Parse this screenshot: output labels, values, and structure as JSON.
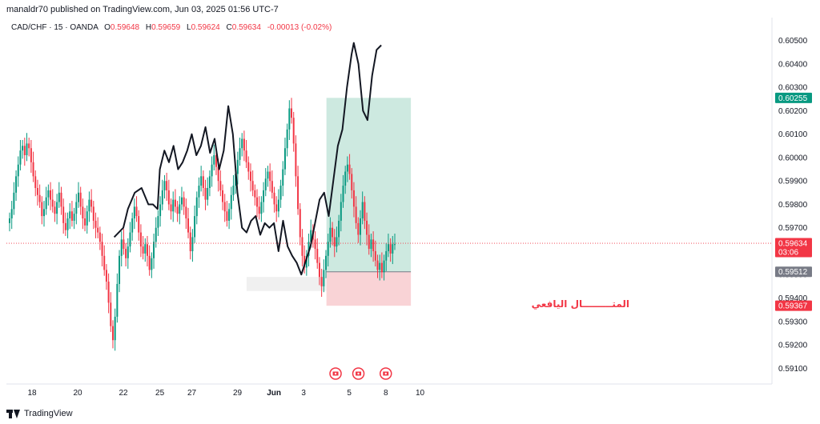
{
  "header": {
    "publisher": "manaldr70 published on TradingView.com, Jun 03, 2025 01:56 UTC-7"
  },
  "legend": {
    "symbol": "CAD/CHF · 15 · OANDA",
    "open_label": "O",
    "open": "0.59648",
    "high_label": "H",
    "high": "0.59659",
    "low_label": "L",
    "low": "0.59624",
    "close_label": "C",
    "close": "0.59634",
    "change": "-0.00013 (-0.02%)"
  },
  "colors": {
    "up": "#089981",
    "down": "#f23645",
    "profit_zone": "#cde9e0",
    "loss_zone": "#f9d3d6",
    "drawing_line": "#131722",
    "grey_zone": "#f0f0f0",
    "event_icon": "#f23645"
  },
  "annotation": "المتـــــــــال اليافعي",
  "footer": {
    "brand": "TradingView"
  },
  "chart_data": {
    "type": "line",
    "symbol": "CAD/CHF",
    "timeframe": "15",
    "y_axis": {
      "ticks": [
        0.605,
        0.604,
        0.603,
        0.602,
        0.601,
        0.6,
        0.599,
        0.598,
        0.597,
        0.595,
        0.594,
        0.593,
        0.592,
        0.591
      ],
      "ylim": [
        0.5906,
        0.6055
      ],
      "tick_labels": [
        "0.60500",
        "0.60400",
        "0.60300",
        "0.60200",
        "0.60100",
        "0.60000",
        "0.59900",
        "0.59800",
        "0.59700",
        "0.59500",
        "0.59400",
        "0.59300",
        "0.59200",
        "0.59100"
      ]
    },
    "x_axis": {
      "ticks": [
        {
          "label": "18",
          "day": 0
        },
        {
          "label": "20",
          "day": 2
        },
        {
          "label": "22",
          "day": 4
        },
        {
          "label": "25",
          "day": 5.6
        },
        {
          "label": "27",
          "day": 7.0
        },
        {
          "label": "29",
          "day": 9.0
        },
        {
          "label": "Jun",
          "day": 10.6
        },
        {
          "label": "3",
          "day": 11.9
        },
        {
          "label": "5",
          "day": 13.9
        },
        {
          "label": "8",
          "day": 15.5
        },
        {
          "label": "10",
          "day": 17.0
        }
      ]
    },
    "axis_markers": [
      {
        "label": "0.60255",
        "value": 0.60255,
        "color": "#089981"
      },
      {
        "label": "0.59634",
        "value": 0.59634,
        "color": "#f23645",
        "sub": "03:06"
      },
      {
        "label": "0.59512",
        "value": 0.59512,
        "color": "#787b86"
      },
      {
        "label": "0.59367",
        "value": 0.59367,
        "color": "#f23645"
      }
    ],
    "position": {
      "entry": 0.59512,
      "target": 0.60255,
      "stop": 0.59367,
      "start_day": 12.9,
      "end_day": 16.6
    },
    "grey_box": {
      "top": 0.5949,
      "bottom": 0.5943,
      "start_day": 9.4,
      "end_day": 12.9
    },
    "event_days": [
      13.3,
      14.3,
      15.5
    ],
    "candles_close": [
      0.5974,
      0.5978,
      0.5985,
      0.5992,
      0.5997,
      0.6003,
      0.6005,
      0.6001,
      0.6006,
      0.6004,
      0.5998,
      0.5992,
      0.5987,
      0.5984,
      0.5981,
      0.5975,
      0.5978,
      0.5983,
      0.5986,
      0.5982,
      0.5979,
      0.5976,
      0.5981,
      0.5985,
      0.5979,
      0.5972,
      0.5969,
      0.5974,
      0.5977,
      0.5973,
      0.5976,
      0.5981,
      0.5985,
      0.5979,
      0.5974,
      0.5971,
      0.5977,
      0.5982,
      0.5979,
      0.5973,
      0.597,
      0.5968,
      0.5964,
      0.5958,
      0.5952,
      0.5947,
      0.5938,
      0.5928,
      0.5922,
      0.5932,
      0.5946,
      0.5958,
      0.5965,
      0.5961,
      0.5957,
      0.5962,
      0.5968,
      0.5974,
      0.5979,
      0.5975,
      0.5968,
      0.5962,
      0.5959,
      0.5963,
      0.5958,
      0.5952,
      0.5957,
      0.5964,
      0.597,
      0.5975,
      0.598,
      0.5986,
      0.599,
      0.5986,
      0.598,
      0.5977,
      0.5982,
      0.5979,
      0.5976,
      0.598,
      0.5983,
      0.5979,
      0.5974,
      0.5968,
      0.596,
      0.5966,
      0.5975,
      0.5983,
      0.5988,
      0.5992,
      0.5987,
      0.5982,
      0.5987,
      0.5992,
      0.5997,
      0.6001,
      0.5996,
      0.599,
      0.5986,
      0.5981,
      0.5977,
      0.5973,
      0.5978,
      0.5984,
      0.5988,
      0.5993,
      0.5999,
      0.6004,
      0.6008,
      0.6003,
      0.5998,
      0.5994,
      0.599,
      0.5986,
      0.5983,
      0.5979,
      0.5976,
      0.5981,
      0.5986,
      0.5991,
      0.5994,
      0.599,
      0.5985,
      0.598,
      0.5977,
      0.5982,
      0.5988,
      0.5995,
      0.6004,
      0.6012,
      0.6021,
      0.6017,
      0.6006,
      0.5992,
      0.5978,
      0.5966,
      0.5958,
      0.5953,
      0.5958,
      0.5964,
      0.5969,
      0.5965,
      0.5961,
      0.5955,
      0.5949,
      0.5945,
      0.5952,
      0.5958,
      0.5964,
      0.597,
      0.5966,
      0.5962,
      0.5966,
      0.5973,
      0.5981,
      0.5988,
      0.5994,
      0.5997,
      0.5993,
      0.5986,
      0.5979,
      0.5972,
      0.5967,
      0.5974,
      0.5981,
      0.5973,
      0.5967,
      0.5961,
      0.5965,
      0.596,
      0.5956,
      0.5952,
      0.5955,
      0.5951,
      0.5956,
      0.596,
      0.5963,
      0.5959,
      0.5963,
      0.5963
    ],
    "drawn_path": [
      {
        "day": 3.6,
        "price": 0.5966
      },
      {
        "day": 4.0,
        "price": 0.597
      },
      {
        "day": 4.2,
        "price": 0.5978
      },
      {
        "day": 4.5,
        "price": 0.5985
      },
      {
        "day": 4.8,
        "price": 0.5987
      },
      {
        "day": 5.1,
        "price": 0.598
      },
      {
        "day": 5.3,
        "price": 0.598
      },
      {
        "day": 5.5,
        "price": 0.5978
      },
      {
        "day": 5.6,
        "price": 0.5995
      },
      {
        "day": 5.8,
        "price": 0.6003
      },
      {
        "day": 6.0,
        "price": 0.5998
      },
      {
        "day": 6.2,
        "price": 0.6005
      },
      {
        "day": 6.4,
        "price": 0.5995
      },
      {
        "day": 6.6,
        "price": 0.5998
      },
      {
        "day": 6.8,
        "price": 0.6003
      },
      {
        "day": 7.0,
        "price": 0.601
      },
      {
        "day": 7.2,
        "price": 0.6001
      },
      {
        "day": 7.4,
        "price": 0.6005
      },
      {
        "day": 7.6,
        "price": 0.6013
      },
      {
        "day": 7.8,
        "price": 0.6002
      },
      {
        "day": 8.0,
        "price": 0.6008
      },
      {
        "day": 8.2,
        "price": 0.5995
      },
      {
        "day": 8.4,
        "price": 0.6003
      },
      {
        "day": 8.6,
        "price": 0.6022
      },
      {
        "day": 8.8,
        "price": 0.601
      },
      {
        "day": 9.0,
        "price": 0.5985
      },
      {
        "day": 9.2,
        "price": 0.597
      },
      {
        "day": 9.4,
        "price": 0.5968
      },
      {
        "day": 9.6,
        "price": 0.5973
      },
      {
        "day": 9.8,
        "price": 0.5975
      },
      {
        "day": 10.0,
        "price": 0.5967
      },
      {
        "day": 10.2,
        "price": 0.5972
      },
      {
        "day": 10.4,
        "price": 0.597
      },
      {
        "day": 10.6,
        "price": 0.5972
      },
      {
        "day": 10.8,
        "price": 0.596
      },
      {
        "day": 11.0,
        "price": 0.5973
      },
      {
        "day": 11.2,
        "price": 0.5962
      },
      {
        "day": 11.4,
        "price": 0.5958
      },
      {
        "day": 11.6,
        "price": 0.5955
      },
      {
        "day": 11.8,
        "price": 0.595
      },
      {
        "day": 12.0,
        "price": 0.5956
      },
      {
        "day": 12.2,
        "price": 0.5962
      },
      {
        "day": 12.4,
        "price": 0.5972
      },
      {
        "day": 12.6,
        "price": 0.5982
      },
      {
        "day": 12.8,
        "price": 0.5985
      },
      {
        "day": 13.0,
        "price": 0.5975
      },
      {
        "day": 13.2,
        "price": 0.599
      },
      {
        "day": 13.4,
        "price": 0.6005
      },
      {
        "day": 13.6,
        "price": 0.6012
      },
      {
        "day": 13.8,
        "price": 0.603
      },
      {
        "day": 14.0,
        "price": 0.6044
      },
      {
        "day": 14.1,
        "price": 0.6049
      },
      {
        "day": 14.3,
        "price": 0.604
      },
      {
        "day": 14.5,
        "price": 0.602
      },
      {
        "day": 14.7,
        "price": 0.6016
      },
      {
        "day": 14.9,
        "price": 0.6035
      },
      {
        "day": 15.1,
        "price": 0.6046
      },
      {
        "day": 15.3,
        "price": 0.6048
      }
    ]
  }
}
